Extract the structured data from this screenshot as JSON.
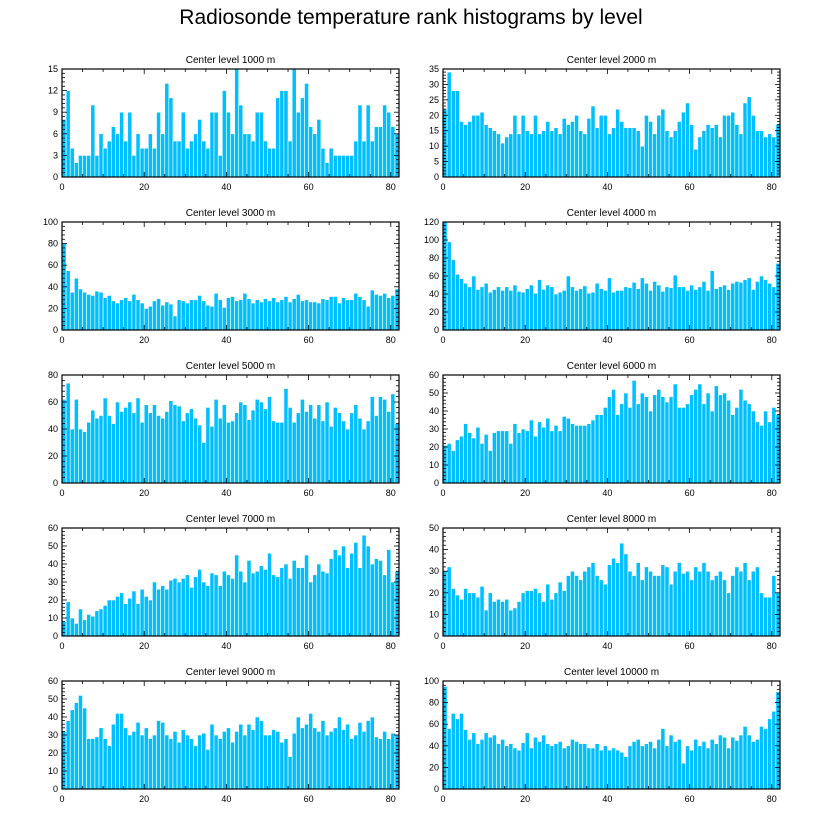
{
  "page_title": "Radiosonde temperature rank histograms by level",
  "colors": {
    "bar_fill": "#00BFFF",
    "bar_edge": "#ffffff",
    "axis": "#000000"
  },
  "chart_data": [
    {
      "type": "bar",
      "title": "Center level 1000 m",
      "xlabel": "",
      "ylabel": "",
      "xlim": [
        0,
        82
      ],
      "ylim": [
        0,
        15
      ],
      "xticks": [
        0,
        20,
        40,
        60,
        80
      ],
      "yticks": [
        0,
        3,
        6,
        9,
        12,
        15
      ],
      "values": [
        8,
        12,
        4,
        2,
        3,
        3,
        3,
        10,
        3,
        6,
        4,
        5,
        7,
        6,
        9,
        5,
        9,
        3,
        6,
        4,
        4,
        6,
        4,
        9,
        6,
        13,
        11,
        5,
        5,
        9,
        4,
        5,
        6,
        8,
        5,
        4,
        9,
        9,
        3,
        12,
        9,
        6,
        15,
        10,
        6,
        6,
        5,
        9,
        9,
        5,
        4,
        4,
        11,
        12,
        12,
        5,
        15,
        9,
        11,
        13,
        7,
        6,
        8,
        4,
        2,
        4,
        3,
        3,
        3,
        3,
        3,
        5,
        10,
        5,
        10,
        5,
        7,
        7,
        10,
        9,
        7,
        6
      ]
    },
    {
      "type": "bar",
      "title": "Center level 2000 m",
      "xlabel": "",
      "ylabel": "",
      "xlim": [
        0,
        82
      ],
      "ylim": [
        0,
        35
      ],
      "xticks": [
        0,
        20,
        40,
        60,
        80
      ],
      "yticks": [
        0,
        5,
        10,
        15,
        20,
        25,
        30,
        35
      ],
      "values": [
        22,
        34,
        28,
        28,
        18,
        17,
        18,
        20,
        20,
        21,
        17,
        16,
        15,
        14,
        11,
        13,
        14,
        20,
        14,
        20,
        15,
        14,
        20,
        14,
        15,
        18,
        15,
        16,
        14,
        19,
        17,
        18,
        20,
        15,
        14,
        19,
        23,
        16,
        20,
        20,
        14,
        16,
        22,
        18,
        16,
        16,
        16,
        15,
        10,
        20,
        18,
        14,
        20,
        22,
        15,
        13,
        15,
        18,
        21,
        24,
        17,
        9,
        13,
        15,
        17,
        16,
        17,
        13,
        20,
        20,
        21,
        17,
        14,
        24,
        26,
        20,
        15,
        15,
        13,
        14,
        13,
        17
      ]
    },
    {
      "type": "bar",
      "title": "Center level 3000 m",
      "xlabel": "",
      "ylabel": "",
      "xlim": [
        0,
        82
      ],
      "ylim": [
        0,
        100
      ],
      "xticks": [
        0,
        20,
        40,
        60,
        80
      ],
      "yticks": [
        0,
        20,
        40,
        60,
        80,
        100
      ],
      "values": [
        80,
        55,
        35,
        48,
        38,
        35,
        33,
        32,
        36,
        35,
        30,
        32,
        27,
        25,
        28,
        30,
        27,
        33,
        28,
        25,
        20,
        22,
        27,
        29,
        23,
        26,
        24,
        13,
        28,
        27,
        25,
        28,
        28,
        32,
        27,
        23,
        22,
        34,
        28,
        21,
        30,
        31,
        27,
        28,
        34,
        29,
        25,
        28,
        26,
        29,
        27,
        30,
        26,
        28,
        31,
        26,
        29,
        33,
        27,
        28,
        26,
        26,
        25,
        29,
        28,
        31,
        31,
        25,
        30,
        28,
        28,
        34,
        31,
        28,
        22,
        37,
        33,
        32,
        34,
        30,
        32,
        38
      ]
    },
    {
      "type": "bar",
      "title": "Center level 4000 m",
      "xlabel": "",
      "ylabel": "",
      "xlim": [
        0,
        82
      ],
      "ylim": [
        0,
        120
      ],
      "xticks": [
        0,
        20,
        40,
        60,
        80
      ],
      "yticks": [
        0,
        20,
        40,
        60,
        80,
        100,
        120
      ],
      "values": [
        120,
        98,
        78,
        62,
        57,
        52,
        48,
        60,
        45,
        48,
        52,
        42,
        45,
        48,
        44,
        48,
        44,
        50,
        43,
        42,
        46,
        50,
        41,
        56,
        45,
        50,
        48,
        40,
        42,
        44,
        60,
        48,
        44,
        46,
        49,
        41,
        42,
        52,
        46,
        44,
        58,
        42,
        44,
        44,
        48,
        47,
        53,
        46,
        58,
        52,
        44,
        54,
        50,
        43,
        48,
        47,
        61,
        48,
        48,
        44,
        50,
        45,
        48,
        54,
        44,
        66,
        46,
        48,
        50,
        45,
        52,
        54,
        53,
        56,
        58,
        45,
        54,
        60,
        56,
        52,
        48,
        74
      ]
    },
    {
      "type": "bar",
      "title": "Center level 5000 m",
      "xlabel": "",
      "ylabel": "",
      "xlim": [
        0,
        82
      ],
      "ylim": [
        0,
        80
      ],
      "xticks": [
        0,
        20,
        40,
        60,
        80
      ],
      "yticks": [
        0,
        20,
        40,
        60,
        80
      ],
      "values": [
        62,
        74,
        40,
        62,
        40,
        38,
        45,
        54,
        48,
        50,
        63,
        50,
        44,
        60,
        53,
        56,
        60,
        52,
        63,
        45,
        58,
        52,
        58,
        50,
        48,
        53,
        61,
        58,
        57,
        46,
        52,
        55,
        48,
        43,
        30,
        56,
        42,
        62,
        48,
        58,
        45,
        46,
        52,
        60,
        58,
        47,
        54,
        62,
        60,
        55,
        64,
        46,
        45,
        45,
        70,
        56,
        45,
        52,
        62,
        53,
        58,
        48,
        58,
        46,
        60,
        42,
        56,
        52,
        46,
        40,
        52,
        58,
        48,
        40,
        46,
        64,
        50,
        64,
        62,
        53,
        66,
        44
      ]
    },
    {
      "type": "bar",
      "title": "Center level 6000 m",
      "xlabel": "",
      "ylabel": "",
      "xlim": [
        0,
        82
      ],
      "ylim": [
        0,
        60
      ],
      "xticks": [
        0,
        20,
        40,
        60,
        80
      ],
      "yticks": [
        0,
        10,
        20,
        30,
        40,
        50,
        60
      ],
      "values": [
        21,
        22,
        18,
        24,
        26,
        33,
        28,
        25,
        31,
        22,
        27,
        18,
        28,
        29,
        29,
        29,
        22,
        33,
        28,
        30,
        29,
        35,
        26,
        34,
        31,
        36,
        29,
        32,
        29,
        37,
        36,
        33,
        32,
        32,
        32,
        33,
        35,
        38,
        38,
        42,
        48,
        52,
        38,
        44,
        50,
        42,
        57,
        44,
        50,
        48,
        40,
        49,
        52,
        48,
        45,
        48,
        55,
        42,
        42,
        44,
        49,
        52,
        55,
        44,
        50,
        40,
        54,
        49,
        50,
        46,
        38,
        42,
        52,
        46,
        44,
        40,
        34,
        32,
        40,
        34,
        42,
        38
      ]
    },
    {
      "type": "bar",
      "title": "Center level 7000 m",
      "xlabel": "",
      "ylabel": "",
      "xlim": [
        0,
        82
      ],
      "ylim": [
        0,
        60
      ],
      "xticks": [
        0,
        20,
        40,
        60,
        80
      ],
      "yticks": [
        0,
        10,
        20,
        30,
        40,
        50,
        60
      ],
      "values": [
        8,
        19,
        10,
        7,
        15,
        9,
        12,
        11,
        14,
        15,
        17,
        20,
        20,
        22,
        24,
        18,
        21,
        25,
        18,
        26,
        22,
        20,
        30,
        26,
        28,
        26,
        31,
        32,
        30,
        32,
        34,
        27,
        33,
        37,
        30,
        28,
        35,
        34,
        28,
        36,
        34,
        32,
        45,
        36,
        30,
        42,
        35,
        36,
        39,
        37,
        46,
        34,
        33,
        38,
        40,
        32,
        42,
        38,
        38,
        45,
        30,
        34,
        40,
        36,
        35,
        43,
        48,
        45,
        50,
        38,
        46,
        52,
        38,
        56,
        50,
        40,
        43,
        42,
        34,
        48,
        30,
        36
      ]
    },
    {
      "type": "bar",
      "title": "Center level 8000 m",
      "xlabel": "",
      "ylabel": "",
      "xlim": [
        0,
        82
      ],
      "ylim": [
        0,
        50
      ],
      "xticks": [
        0,
        20,
        40,
        60,
        80
      ],
      "yticks": [
        0,
        10,
        20,
        30,
        40,
        50
      ],
      "values": [
        30,
        32,
        22,
        19,
        17,
        22,
        20,
        20,
        18,
        23,
        12,
        20,
        16,
        17,
        16,
        17,
        12,
        13,
        16,
        20,
        21,
        21,
        22,
        20,
        16,
        24,
        17,
        20,
        25,
        21,
        28,
        30,
        28,
        26,
        30,
        32,
        34,
        28,
        26,
        24,
        33,
        36,
        34,
        43,
        38,
        30,
        28,
        34,
        26,
        32,
        30,
        28,
        28,
        33,
        32,
        24,
        30,
        34,
        29,
        30,
        26,
        32,
        30,
        34,
        30,
        26,
        28,
        30,
        26,
        20,
        28,
        32,
        30,
        34,
        26,
        30,
        32,
        20,
        18,
        18,
        28,
        20
      ]
    },
    {
      "type": "bar",
      "title": "Center level 9000 m",
      "xlabel": "",
      "ylabel": "",
      "xlim": [
        0,
        82
      ],
      "ylim": [
        0,
        60
      ],
      "xticks": [
        0,
        20,
        40,
        60,
        80
      ],
      "yticks": [
        0,
        10,
        20,
        30,
        40,
        50,
        60
      ],
      "values": [
        32,
        38,
        44,
        48,
        52,
        45,
        28,
        28,
        29,
        34,
        28,
        24,
        36,
        42,
        42,
        34,
        30,
        32,
        37,
        30,
        34,
        28,
        30,
        38,
        37,
        30,
        28,
        32,
        26,
        33,
        30,
        28,
        24,
        30,
        31,
        22,
        36,
        30,
        28,
        32,
        34,
        26,
        32,
        36,
        30,
        36,
        33,
        40,
        38,
        30,
        30,
        33,
        32,
        26,
        28,
        18,
        31,
        40,
        34,
        36,
        42,
        34,
        32,
        38,
        30,
        32,
        34,
        40,
        33,
        36,
        28,
        30,
        37,
        32,
        38,
        40,
        29,
        28,
        32,
        28,
        31,
        30
      ]
    },
    {
      "type": "bar",
      "title": "Center level 10000 m",
      "xlabel": "",
      "ylabel": "",
      "xlim": [
        0,
        82
      ],
      "ylim": [
        0,
        100
      ],
      "xticks": [
        0,
        20,
        40,
        60,
        80
      ],
      "yticks": [
        0,
        20,
        40,
        60,
        80,
        100
      ],
      "values": [
        95,
        56,
        70,
        65,
        70,
        55,
        46,
        52,
        42,
        46,
        52,
        48,
        50,
        42,
        46,
        40,
        42,
        38,
        36,
        43,
        52,
        38,
        48,
        44,
        50,
        42,
        40,
        42,
        44,
        38,
        40,
        46,
        44,
        42,
        42,
        38,
        38,
        42,
        36,
        40,
        36,
        38,
        36,
        34,
        30,
        40,
        44,
        46,
        40,
        42,
        44,
        38,
        46,
        56,
        40,
        50,
        44,
        46,
        24,
        40,
        36,
        46,
        40,
        44,
        38,
        46,
        42,
        50,
        48,
        38,
        48,
        45,
        50,
        58,
        50,
        44,
        46,
        58,
        56,
        65,
        72,
        90
      ]
    }
  ]
}
